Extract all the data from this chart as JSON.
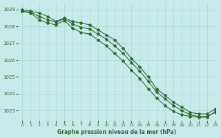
{
  "background_color": "#c8eaea",
  "grid_color": "#a8d8d8",
  "line_color": "#2d6b2d",
  "title": "Graphe pression niveau de la mer (hPa)",
  "xlim": [
    -0.5,
    23
  ],
  "ylim": [
    1022.4,
    1029.4
  ],
  "yticks": [
    1023,
    1024,
    1025,
    1026,
    1027,
    1028,
    1029
  ],
  "xticks": [
    0,
    1,
    2,
    3,
    4,
    5,
    6,
    7,
    8,
    9,
    10,
    11,
    12,
    13,
    14,
    15,
    16,
    17,
    18,
    19,
    20,
    21,
    22,
    23
  ],
  "line1": [
    1029.0,
    1028.9,
    1028.8,
    1028.6,
    1028.3,
    1028.5,
    1028.3,
    1028.2,
    1028.1,
    1027.8,
    1027.5,
    1027.2,
    1026.7,
    1026.1,
    1025.6,
    1025.0,
    1024.3,
    1023.9,
    1023.5,
    1023.2,
    1022.9,
    1022.8,
    1022.8,
    1023.1
  ],
  "line2": [
    1028.9,
    1028.85,
    1028.6,
    1028.4,
    1028.25,
    1028.45,
    1028.15,
    1027.95,
    1027.85,
    1027.55,
    1027.25,
    1026.85,
    1026.4,
    1025.85,
    1025.35,
    1024.75,
    1024.1,
    1023.7,
    1023.3,
    1023.0,
    1022.75,
    1022.65,
    1022.65,
    1022.9
  ],
  "line3": [
    1028.9,
    1028.8,
    1028.4,
    1028.2,
    1028.1,
    1028.35,
    1027.9,
    1027.65,
    1027.55,
    1027.2,
    1026.85,
    1026.4,
    1025.95,
    1025.4,
    1024.9,
    1024.3,
    1023.75,
    1023.3,
    1022.95,
    1022.75,
    1022.65,
    1022.6,
    1022.6,
    1022.95
  ]
}
